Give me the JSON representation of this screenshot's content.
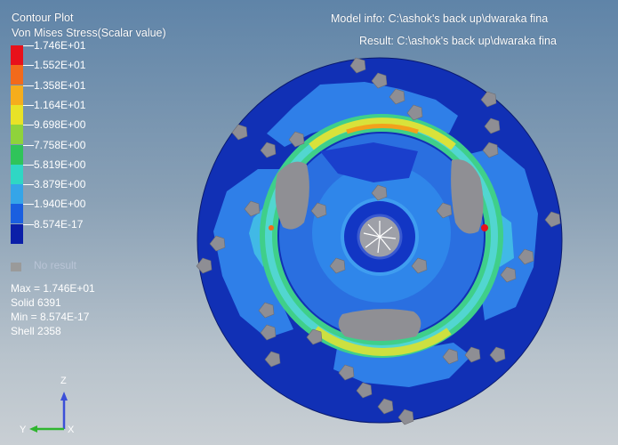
{
  "header": {
    "title": "Contour Plot",
    "subtitle": "Von Mises Stress(Scalar value)",
    "model_info": "Model info: C:\\ashok's back up\\dwaraka fina",
    "result_info": "Result: C:\\ashok's back up\\dwaraka fina"
  },
  "legend": {
    "entries": [
      {
        "label": "1.746E+01",
        "color": "#e8111b"
      },
      {
        "label": "1.552E+01",
        "color": "#f26a1b"
      },
      {
        "label": "1.358E+01",
        "color": "#f5ad1c"
      },
      {
        "label": "1.164E+01",
        "color": "#e8e227"
      },
      {
        "label": "9.698E+00",
        "color": "#8fd33b"
      },
      {
        "label": "7.758E+00",
        "color": "#2fc45a"
      },
      {
        "label": "5.819E+00",
        "color": "#2fd7c4"
      },
      {
        "label": "3.879E+00",
        "color": "#35a5e8"
      },
      {
        "label": "1.940E+00",
        "color": "#1a5fe0"
      },
      {
        "label": "8.574E-17",
        "color": "#0b1fa8"
      }
    ],
    "no_result": "No result",
    "no_result_color": "#9a9a9a"
  },
  "stats": {
    "max": "Max = 1.746E+01",
    "max_elem": "Solid 6391",
    "min": "Min = 8.574E-17",
    "min_elem": "Shell 2358"
  },
  "triad": {
    "z": "Z",
    "y": "Y",
    "x": "X"
  }
}
